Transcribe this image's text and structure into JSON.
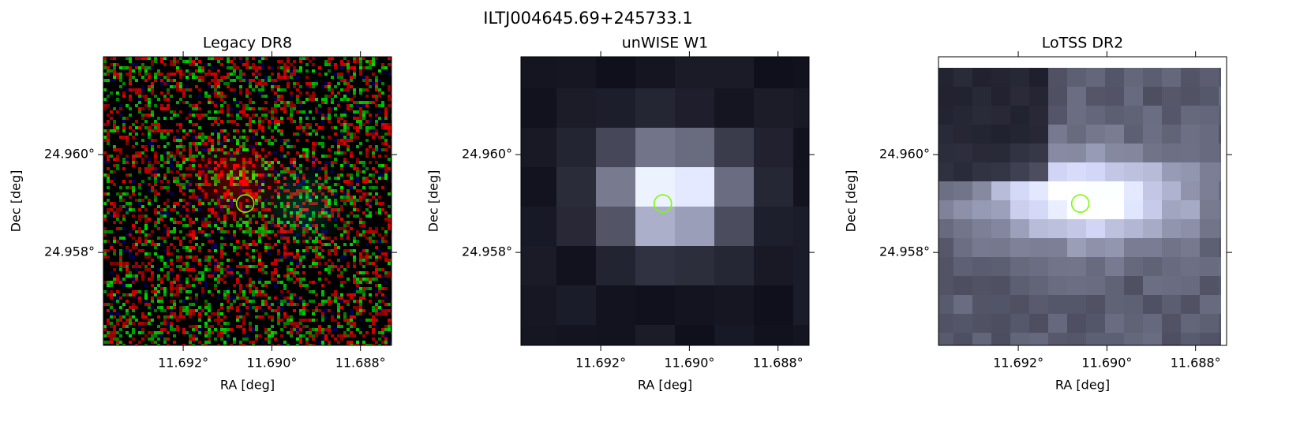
{
  "title": "ILTJ004645.69+245733.1",
  "chart_data": [
    {
      "type": "image",
      "title": "Legacy DR8",
      "xlabel": "RA [deg]",
      "ylabel": "Dec [deg]",
      "xlim": [
        11.6938,
        11.6873
      ],
      "ylim": [
        24.9561,
        24.962
      ],
      "xticks": [
        {
          "value": 11.692,
          "label": "11.692°"
        },
        {
          "value": 11.69,
          "label": "11.690°"
        },
        {
          "value": 11.688,
          "label": "11.688°"
        }
      ],
      "yticks": [
        {
          "value": 24.958,
          "label": "24.958°"
        },
        {
          "value": 24.96,
          "label": "24.960°"
        }
      ],
      "marker": {
        "ra": 11.6906,
        "dec": 24.959,
        "color": "#7cfc00"
      }
    },
    {
      "type": "image",
      "title": "unWISE W1",
      "xlabel": "RA [deg]",
      "ylabel": "Dec [deg]",
      "xlim": [
        11.6938,
        11.6873
      ],
      "ylim": [
        24.9561,
        24.962
      ],
      "xticks": [
        {
          "value": 11.692,
          "label": "11.692°"
        },
        {
          "value": 11.69,
          "label": "11.690°"
        },
        {
          "value": 11.688,
          "label": "11.688°"
        }
      ],
      "yticks": [
        {
          "value": 24.958,
          "label": "24.958°"
        },
        {
          "value": 24.96,
          "label": "24.960°"
        }
      ],
      "marker": {
        "ra": 11.6906,
        "dec": 24.959,
        "color": "#7cfc00"
      }
    },
    {
      "type": "image",
      "title": "LoTSS DR2",
      "xlabel": "RA [deg]",
      "ylabel": "Dec [deg]",
      "xlim": [
        11.6938,
        11.6873
      ],
      "ylim": [
        24.9561,
        24.962
      ],
      "xticks": [
        {
          "value": 11.692,
          "label": "11.692°"
        },
        {
          "value": 11.69,
          "label": "11.690°"
        },
        {
          "value": 11.688,
          "label": "11.688°"
        }
      ],
      "yticks": [
        {
          "value": 24.958,
          "label": "24.958°"
        },
        {
          "value": 24.96,
          "label": "24.960°"
        }
      ],
      "marker": {
        "ra": 11.6906,
        "dec": 24.959,
        "color": "#7cfc00"
      }
    }
  ]
}
